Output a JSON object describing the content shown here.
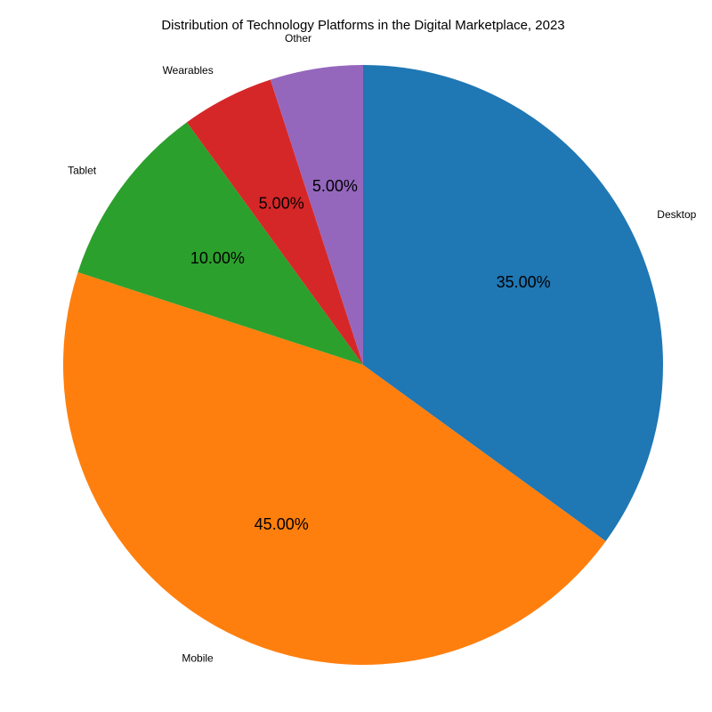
{
  "chart_data": {
    "type": "pie",
    "title": "Distribution of Technology Platforms in the Digital Marketplace, 2023",
    "categories": [
      "Desktop",
      "Mobile",
      "Tablet",
      "Wearables",
      "Other"
    ],
    "values": [
      35,
      45,
      10,
      5,
      5
    ],
    "percent_labels": [
      "35.00%",
      "45.00%",
      "10.00%",
      "5.00%",
      "5.00%"
    ],
    "colors": [
      "#1f77b4",
      "#ff7f0e",
      "#2ca02c",
      "#d62728",
      "#9467bd"
    ],
    "start_angle_deg": 90,
    "direction": "clockwise",
    "legend": "none"
  }
}
